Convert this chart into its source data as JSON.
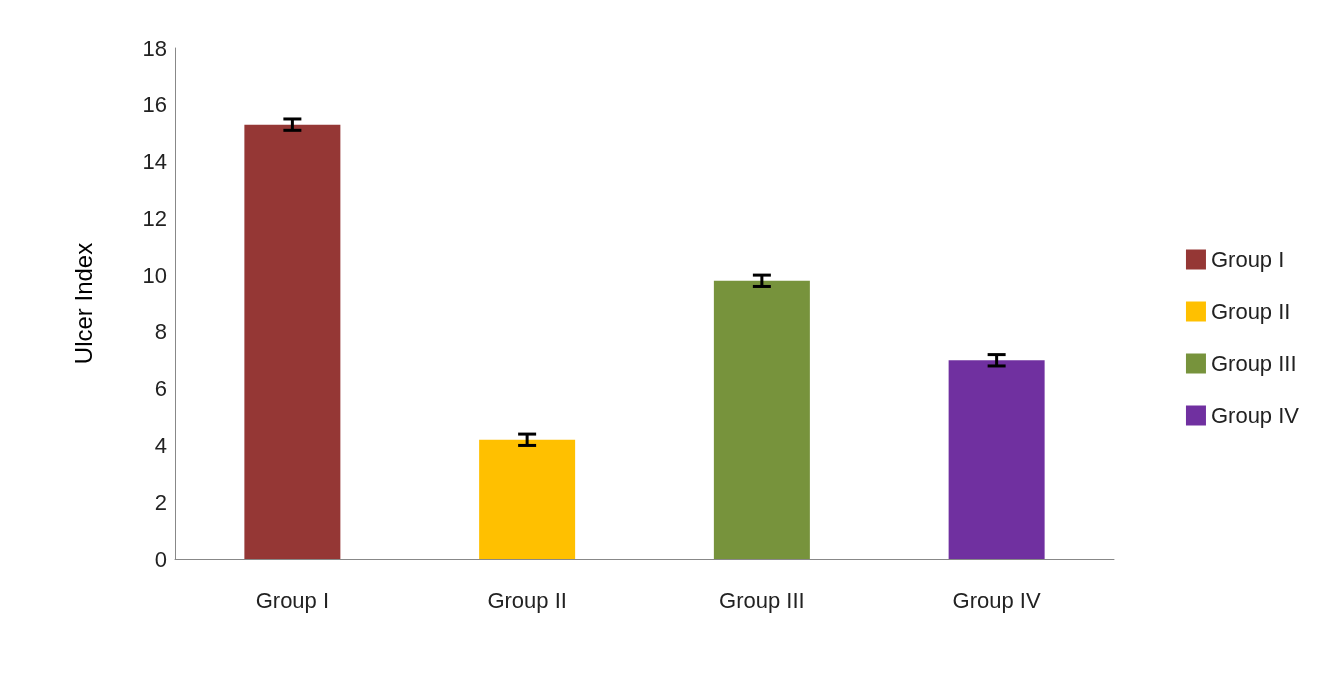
{
  "chart_data": {
    "type": "bar",
    "ylabel": "Ulcer Index",
    "categories": [
      "Group I",
      "Group II",
      "Group III",
      "Group IV"
    ],
    "series": [
      {
        "name": "Group I",
        "color": "#953735",
        "values": [
          15.3,
          null,
          null,
          null
        ],
        "errors": [
          0.2,
          null,
          null,
          null
        ]
      },
      {
        "name": "Group II",
        "color": "#ffc000",
        "values": [
          null,
          4.2,
          null,
          null
        ],
        "errors": [
          null,
          0.2,
          null,
          null
        ]
      },
      {
        "name": "Group III",
        "color": "#77933c",
        "values": [
          null,
          null,
          9.8,
          null
        ],
        "errors": [
          null,
          null,
          0.2,
          null
        ]
      },
      {
        "name": "Group IV",
        "color": "#7030a0",
        "values": [
          null,
          null,
          null,
          7.0
        ],
        "errors": [
          null,
          null,
          null,
          0.2
        ]
      }
    ],
    "ylim": [
      0,
      18
    ],
    "yticks": [
      0,
      2,
      4,
      6,
      8,
      10,
      12,
      14,
      16,
      18
    ],
    "grid": false,
    "legend": "right"
  }
}
